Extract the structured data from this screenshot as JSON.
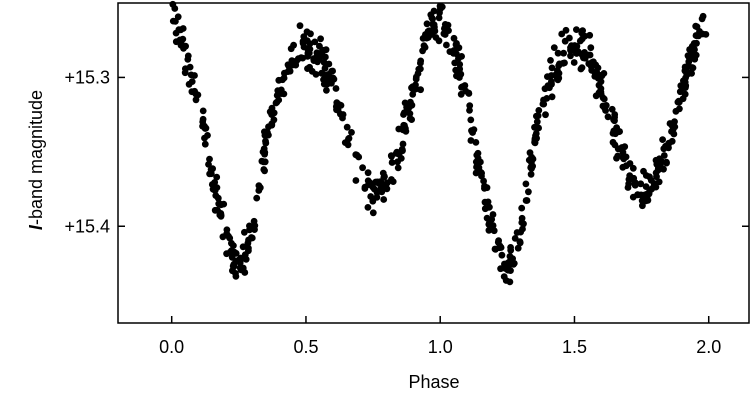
{
  "chart_data": {
    "type": "scatter",
    "title": "",
    "xlabel": "Phase",
    "ylabel_italic": "I",
    "ylabel_rest": "-band magnitude",
    "xlim": [
      -0.2,
      2.15
    ],
    "ylim": [
      15.25,
      15.465
    ],
    "y_inverted": true,
    "x_ticks": [
      0.0,
      0.5,
      1.0,
      1.5,
      2.0
    ],
    "x_tick_labels": [
      "0.0",
      "0.5",
      "1.0",
      "1.5",
      "2.0"
    ],
    "y_ticks": [
      15.3,
      15.4
    ],
    "y_tick_labels": [
      "+15.3",
      "+15.4"
    ],
    "grid": false,
    "marker_color": "#000000",
    "light_curve": {
      "phase": [
        0.0,
        0.05,
        0.1,
        0.15,
        0.2,
        0.25,
        0.3,
        0.35,
        0.4,
        0.45,
        0.5,
        0.55,
        0.6,
        0.65,
        0.7,
        0.75,
        0.8,
        0.85,
        0.9,
        0.95,
        1.0
      ],
      "magnitude": [
        15.255,
        15.285,
        15.315,
        15.365,
        15.405,
        15.428,
        15.405,
        15.345,
        15.305,
        15.285,
        15.278,
        15.285,
        15.305,
        15.335,
        15.365,
        15.378,
        15.372,
        15.345,
        15.31,
        15.275,
        15.258
      ]
    },
    "scatter_magnitude": 0.012,
    "n_points_per_cycle": 360,
    "x_max": 2.0
  }
}
